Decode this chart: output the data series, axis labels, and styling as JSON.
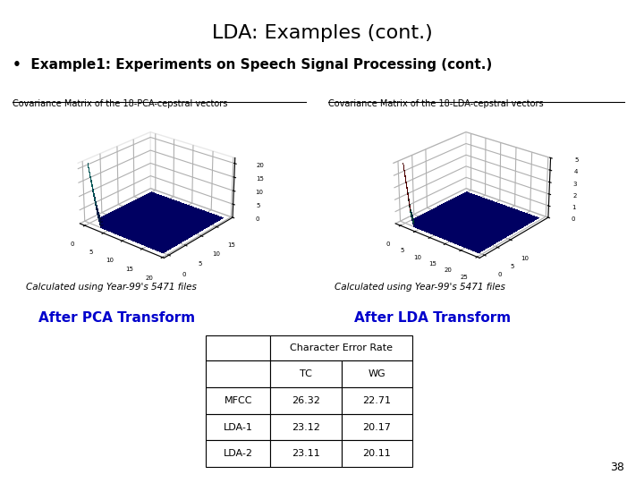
{
  "title": "LDA: Examples (cont.)",
  "bullet": "Example1: Experiments on Speech Signal Processing (cont.)",
  "label_pca": "Covariance Matrix of the 18-PCA-cepstral vectors",
  "label_lda": "Covariance Matrix of the 18-LDA-cepstral vectors",
  "caption_pca": "Calculated using Year-99's 5471 files",
  "caption_lda": "Calculated using Year-99's 5471 files",
  "after_pca": "After PCA Transform",
  "after_lda": "After LDA Transform",
  "table_header1": "Character Error Rate",
  "table_header2_tc": "TC",
  "table_header2_wg": "WG",
  "table_rows": [
    [
      "MFCC",
      "26.32",
      "22.71"
    ],
    [
      "LDA-1",
      "23.12",
      "20.17"
    ],
    [
      "LDA-2",
      "23.11",
      "20.11"
    ]
  ],
  "page_number": "38",
  "bg_color": "#ffffff",
  "title_color": "#000000",
  "bullet_color": "#000000",
  "label_color": "#000000",
  "after_pca_color": "#0000cc",
  "after_lda_color": "#0000cc",
  "table_text_color": "#000000"
}
